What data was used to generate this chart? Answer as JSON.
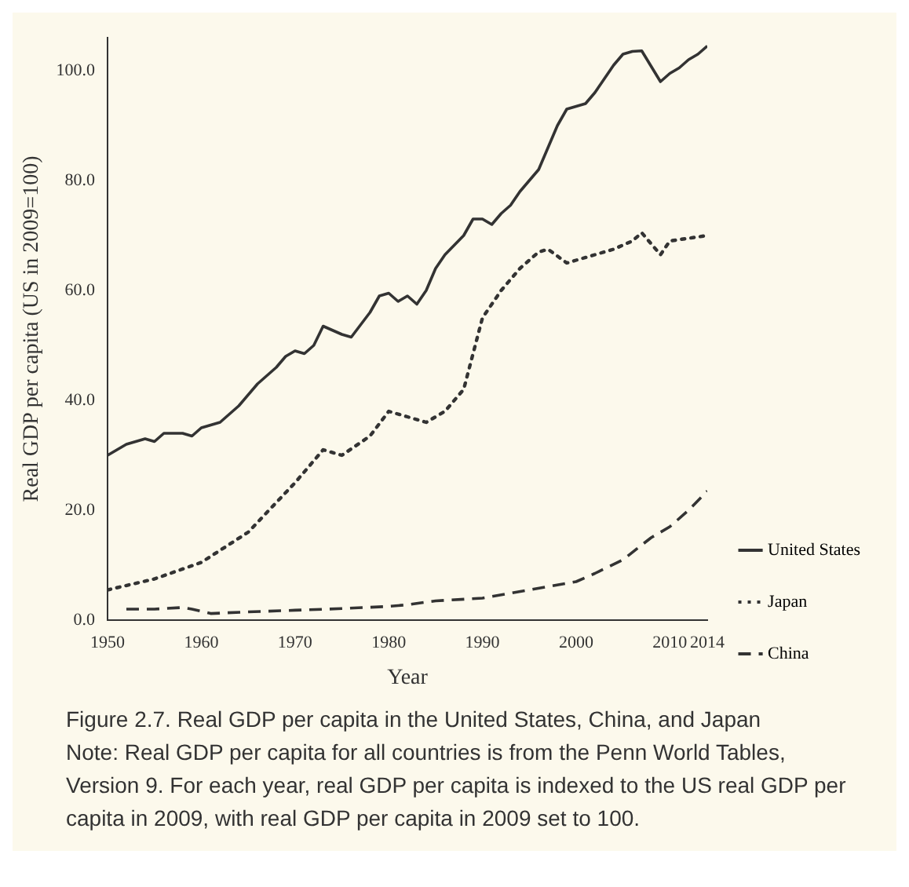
{
  "chart_data": {
    "type": "line",
    "title": "Figure 2.7. Real GDP per capita in the United States, China, and Japan",
    "annotations": [
      "Note: Real GDP per capita for all countries is from the Penn World Tables, Version 9. For each year, real GDP per capita is indexed to the US real GDP per capita in 2009, with real GDP per capita in 2009 set to 100."
    ],
    "xlabel": "Year",
    "ylabel": "Real GDP per capita (US in 2009=100)",
    "xlim": [
      1950,
      2014
    ],
    "xticks": [
      1950,
      1960,
      1970,
      1980,
      1990,
      2000,
      2010,
      2014
    ],
    "ylim": [
      0,
      106
    ],
    "yticks": [
      {
        "value": 0,
        "label": "0.0"
      },
      {
        "value": 20,
        "label": "20.0"
      },
      {
        "value": 40,
        "label": "40.0"
      },
      {
        "value": 60,
        "label": "60.0"
      },
      {
        "value": 80,
        "label": "80.0"
      },
      {
        "value": 100,
        "label": "100.0"
      }
    ],
    "grid": false,
    "legend": "bottom right",
    "marker": "none",
    "series": [
      {
        "name": "United States",
        "color": "#333333",
        "line_style": "solid",
        "x": [
          1950,
          1952,
          1954,
          1955,
          1956,
          1958,
          1959,
          1960,
          1962,
          1964,
          1966,
          1968,
          1969,
          1970,
          1971,
          1972,
          1973,
          1975,
          1976,
          1978,
          1979,
          1980,
          1981,
          1982,
          1983,
          1984,
          1985,
          1986,
          1988,
          1989,
          1990,
          1991,
          1992,
          1993,
          1994,
          1995,
          1996,
          1997,
          1998,
          1999,
          2000,
          2001,
          2002,
          2003,
          2004,
          2005,
          2006,
          2007,
          2009,
          2010,
          2011,
          2012,
          2013,
          2014
        ],
        "values": [
          30,
          32,
          33,
          32.5,
          34,
          34,
          33.5,
          35,
          36,
          39,
          43,
          46,
          48,
          49,
          48.5,
          50,
          53.5,
          52,
          51.5,
          56,
          59,
          59.5,
          58,
          59,
          57.5,
          60,
          64,
          66.5,
          70,
          73,
          73,
          72,
          74,
          75.5,
          78,
          80,
          82,
          86,
          90,
          93,
          93.5,
          94,
          96,
          98.5,
          101,
          103,
          103.5,
          103.6,
          98,
          99.5,
          100.5,
          102,
          103,
          104.5
        ]
      },
      {
        "name": "Japan",
        "color": "#333333",
        "line_style": "dotted",
        "x": [
          1950,
          1955,
          1960,
          1965,
          1970,
          1973,
          1975,
          1978,
          1980,
          1982,
          1984,
          1986,
          1988,
          1990,
          1992,
          1994,
          1996,
          1997,
          1999,
          2000,
          2002,
          2004,
          2006,
          2007,
          2009,
          2010,
          2012,
          2014
        ],
        "values": [
          5.5,
          7.5,
          10.5,
          16,
          25,
          31,
          30,
          33.5,
          38,
          37,
          36,
          38,
          42,
          55,
          60,
          64,
          67,
          67.5,
          65,
          65.5,
          66.5,
          67.5,
          69,
          70.5,
          66.5,
          69,
          69.5,
          70
        ]
      },
      {
        "name": "China",
        "color": "#333333",
        "line_style": "dashed",
        "x": [
          1952,
          1955,
          1958,
          1959,
          1961,
          1965,
          1970,
          1975,
          1980,
          1982,
          1985,
          1990,
          1995,
          2000,
          2002,
          2005,
          2008,
          2010,
          2012,
          2014
        ],
        "values": [
          2,
          2,
          2.3,
          2,
          1.2,
          1.5,
          1.8,
          2.1,
          2.5,
          2.8,
          3.5,
          4,
          5.5,
          7,
          8.5,
          11,
          15,
          17,
          20,
          23.5
        ]
      }
    ]
  }
}
